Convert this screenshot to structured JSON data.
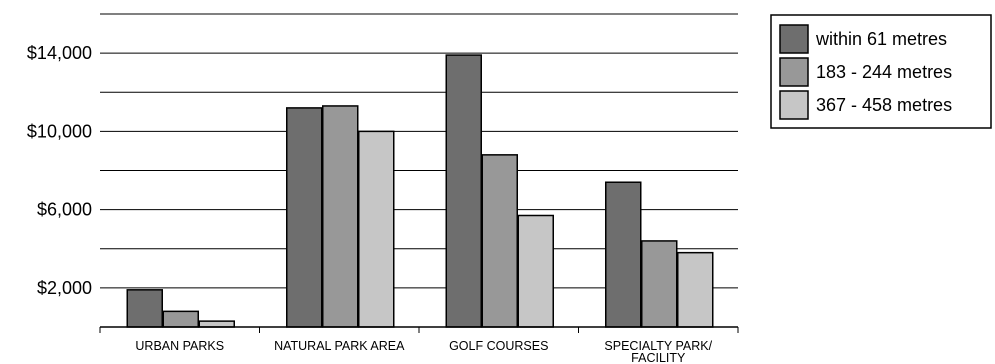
{
  "chart_data": {
    "type": "bar",
    "title": "",
    "xlabel": "",
    "ylabel": "",
    "categories": [
      [
        "URBAN PARKS"
      ],
      [
        "NATURAL PARK AREA"
      ],
      [
        "GOLF COURSES"
      ],
      [
        "SPECIALTY PARK/",
        "FACILITY"
      ]
    ],
    "series": [
      {
        "name": "within 61 metres",
        "color": "#6e6e6e",
        "values": [
          1900,
          11200,
          13900,
          7400
        ]
      },
      {
        "name": "183 - 244 metres",
        "color": "#989898",
        "values": [
          800,
          11300,
          8800,
          4400
        ]
      },
      {
        "name": "367 - 458 metres",
        "color": "#c6c6c6",
        "values": [
          300,
          10000,
          5700,
          3800
        ]
      }
    ],
    "ylim": [
      0,
      16000
    ],
    "gridlines": [
      0,
      2000,
      4000,
      6000,
      8000,
      10000,
      12000,
      14000,
      16000
    ],
    "yticks": [
      {
        "value": 2000,
        "label": "$2,000"
      },
      {
        "value": 6000,
        "label": "$6,000"
      },
      {
        "value": 10000,
        "label": "$10,000"
      },
      {
        "value": 14000,
        "label": "$14,000"
      }
    ],
    "grid": true,
    "legend_position": "top-right"
  }
}
